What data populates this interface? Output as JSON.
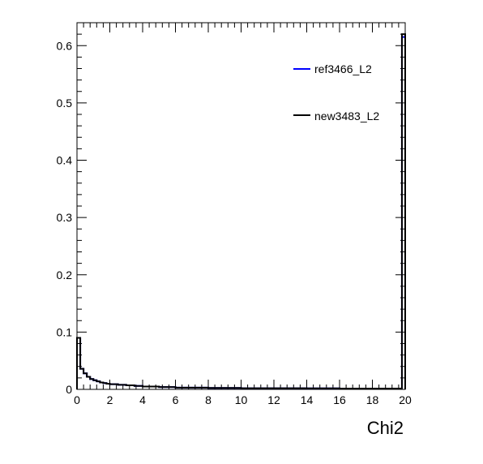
{
  "chart_data": {
    "type": "line",
    "histogram": true,
    "xlabel": "Chi2",
    "xlim": [
      0,
      20
    ],
    "ylim": [
      0,
      0.64
    ],
    "x_ticks": [
      "0",
      "2",
      "4",
      "6",
      "8",
      "10",
      "12",
      "14",
      "16",
      "18",
      "20"
    ],
    "y_ticks": [
      "0",
      "0.1",
      "0.2",
      "0.3",
      "0.4",
      "0.5",
      "0.6"
    ],
    "y_tick_values": [
      0,
      0.1,
      0.2,
      0.3,
      0.4,
      0.5,
      0.6
    ],
    "bin_width": 0.2,
    "legend_placement": "top-right",
    "series": [
      {
        "name": "ref3466_L2",
        "color": "#0000ff",
        "bin_starts": [
          0,
          0.2,
          0.4,
          0.6,
          0.8,
          1.0,
          1.2,
          1.4,
          1.6,
          1.8,
          2.0,
          2.5,
          3.0,
          3.5,
          4.0,
          5.0,
          6.0,
          8.0,
          10.0,
          12.0,
          14.0,
          16.0,
          19.8
        ],
        "values": [
          0.09,
          0.036,
          0.028,
          0.022,
          0.018,
          0.016,
          0.014,
          0.012,
          0.011,
          0.01,
          0.009,
          0.008,
          0.007,
          0.006,
          0.005,
          0.004,
          0.003,
          0.0025,
          0.002,
          0.002,
          0.0018,
          0.0015,
          0.615
        ]
      },
      {
        "name": "new3483_L2",
        "color": "#000000",
        "bin_starts": [
          0,
          0.2,
          0.4,
          0.6,
          0.8,
          1.0,
          1.2,
          1.4,
          1.6,
          1.8,
          2.0,
          2.5,
          3.0,
          3.5,
          4.0,
          5.0,
          6.0,
          8.0,
          10.0,
          12.0,
          14.0,
          16.0,
          19.8
        ],
        "values": [
          0.09,
          0.036,
          0.028,
          0.022,
          0.018,
          0.016,
          0.014,
          0.012,
          0.011,
          0.01,
          0.009,
          0.008,
          0.007,
          0.006,
          0.005,
          0.004,
          0.003,
          0.0025,
          0.002,
          0.002,
          0.0018,
          0.0015,
          0.62
        ]
      }
    ]
  }
}
